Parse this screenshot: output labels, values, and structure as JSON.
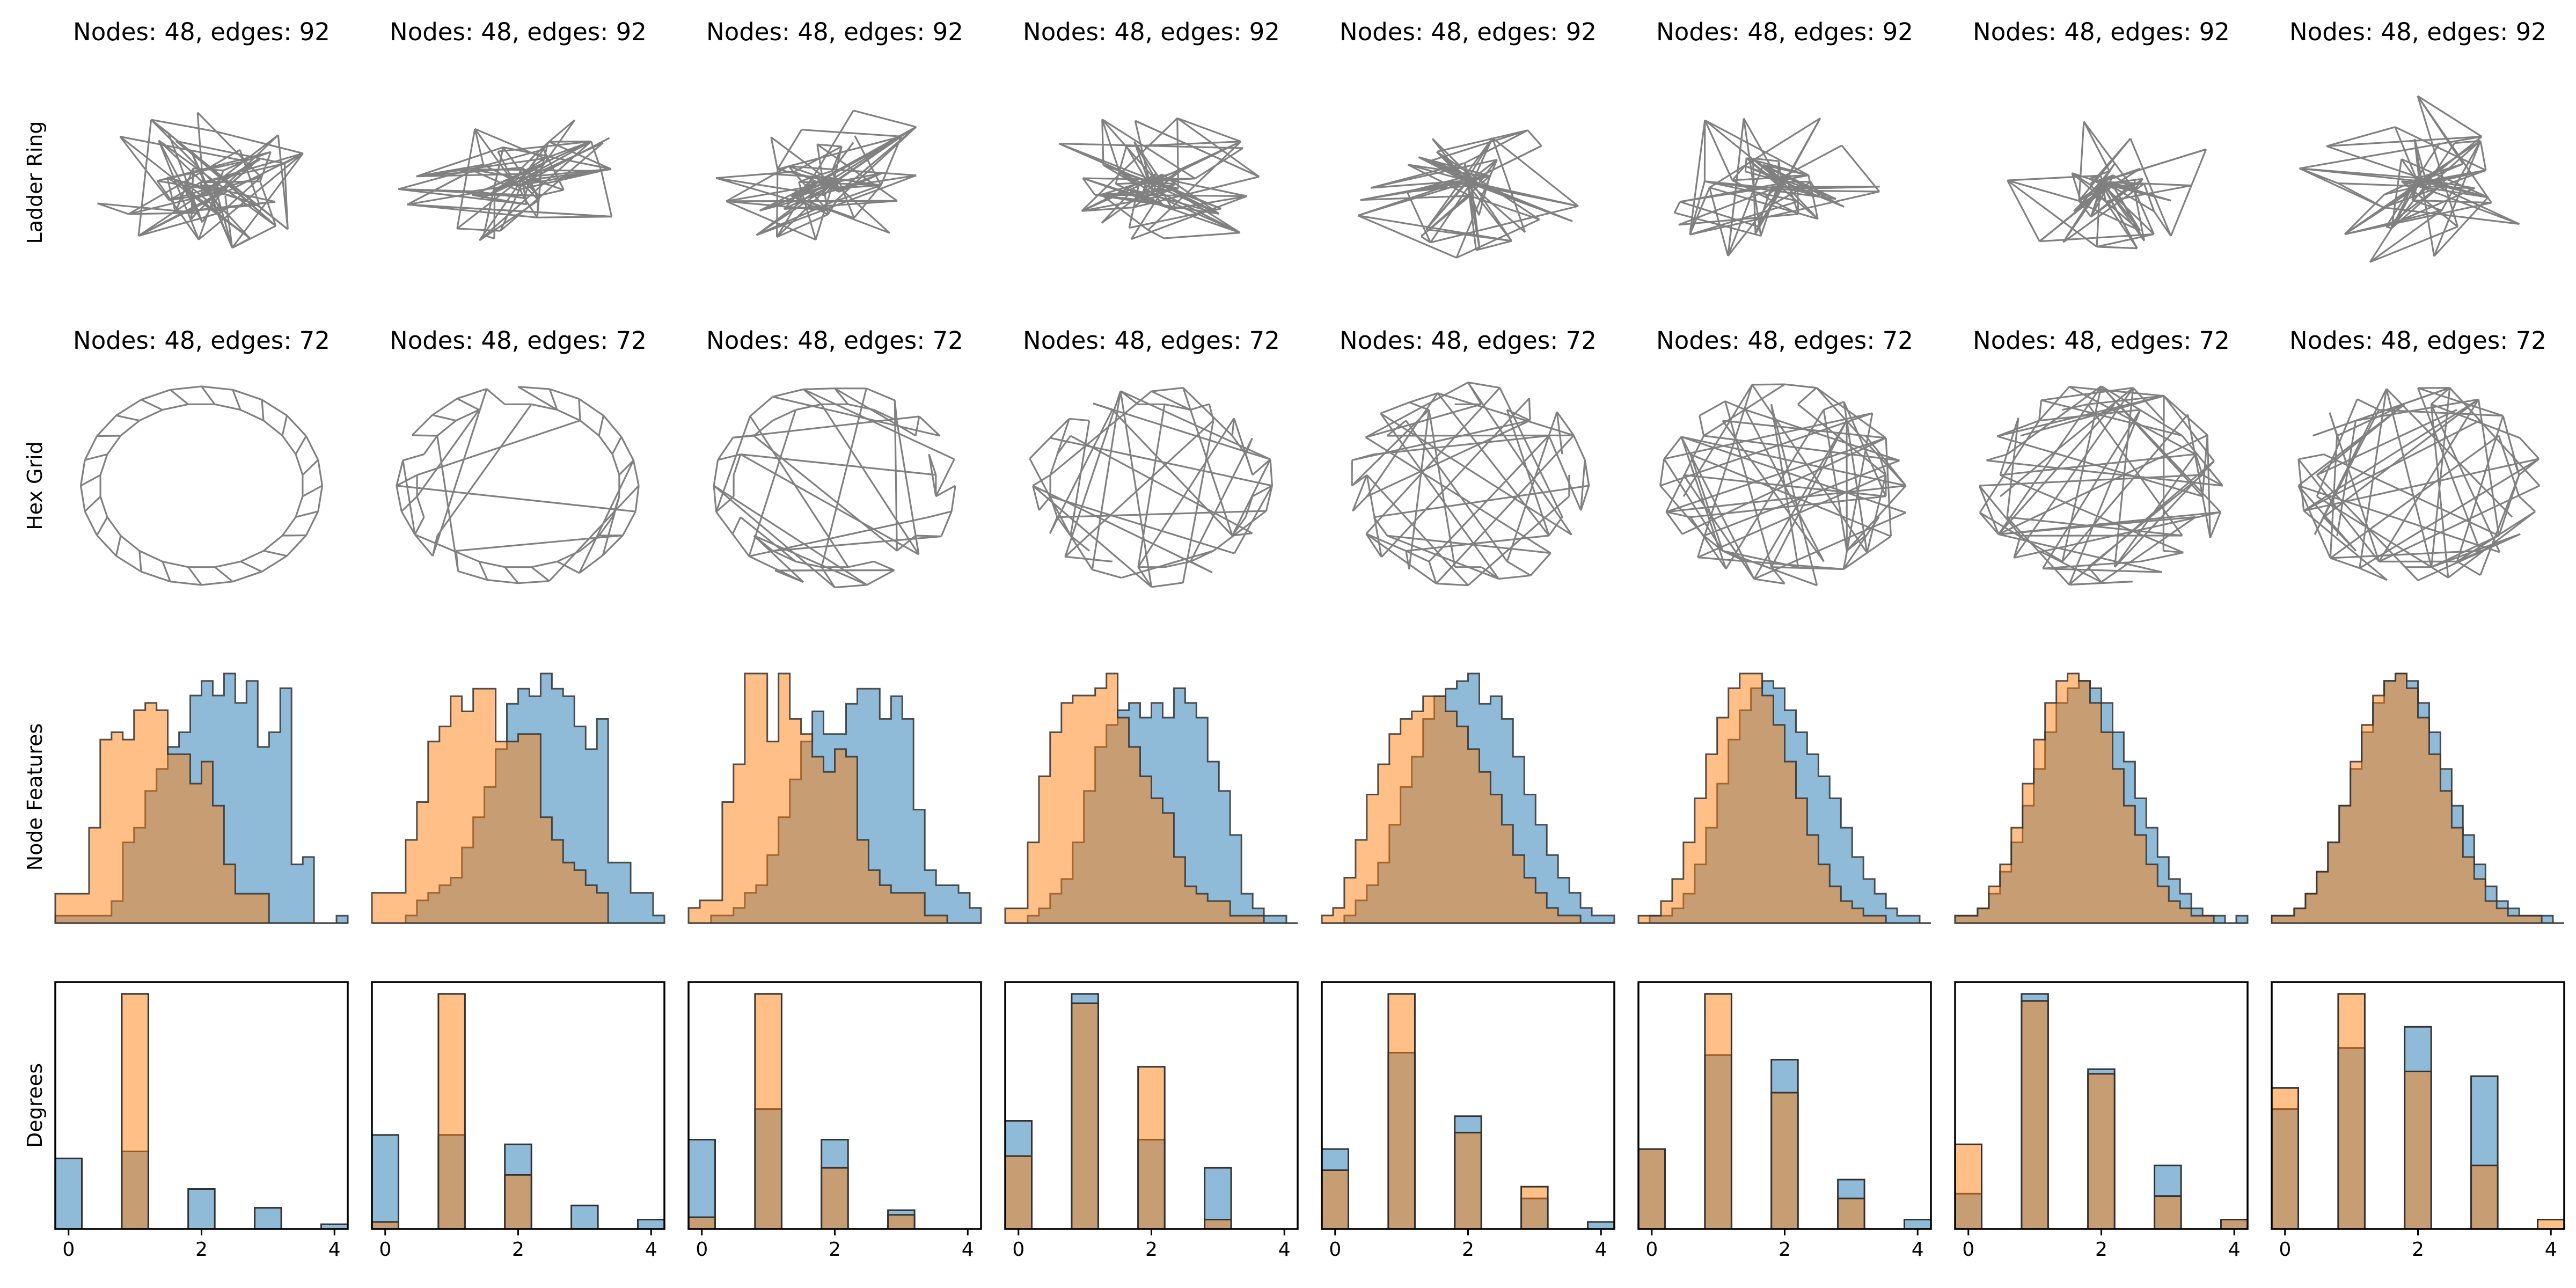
{
  "figure": {
    "row_labels": [
      "Ladder Ring",
      "Hex Grid",
      "Node Features",
      "Degrees"
    ],
    "ladder_titles": [
      "Nodes: 48, edges: 92",
      "Nodes: 48, edges: 92",
      "Nodes: 48, edges: 92",
      "Nodes: 48, edges: 92",
      "Nodes: 48, edges: 92",
      "Nodes: 48, edges: 92",
      "Nodes: 48, edges: 92",
      "Nodes: 48, edges: 92"
    ],
    "hex_titles": [
      "Nodes: 48, edges: 72",
      "Nodes: 48, edges: 72",
      "Nodes: 48, edges: 72",
      "Nodes: 48, edges: 72",
      "Nodes: 48, edges: 72",
      "Nodes: 48, edges: 72",
      "Nodes: 48, edges: 72",
      "Nodes: 48, edges: 72"
    ],
    "colors": {
      "edge": "#808080",
      "blue": "#1f77b4",
      "orange": "#ff7f0e",
      "outline": "#333333"
    }
  },
  "chart_data": [
    {
      "type": "graph",
      "row": "Ladder Ring",
      "panels": 8,
      "nodes": 48,
      "edges": 92
    },
    {
      "type": "graph",
      "row": "Hex Grid",
      "panels": 8,
      "nodes": 48,
      "edges": 72
    },
    {
      "type": "histogram",
      "row": "Node Features",
      "series_colors": [
        "#1f77b4",
        "#ff7f0e"
      ],
      "panels": [
        {
          "blue": [
            1,
            1,
            1,
            1,
            1,
            3,
            11,
            13,
            18,
            21,
            24,
            26,
            31,
            33,
            31,
            34,
            30,
            33,
            24,
            26,
            32,
            8,
            9,
            0,
            0,
            1
          ],
          "orange": [
            4,
            4,
            4,
            13,
            25,
            26,
            25,
            29,
            30,
            29,
            23,
            23,
            19,
            22,
            16,
            8,
            4,
            4,
            4,
            0,
            0,
            0,
            0,
            0,
            0,
            0
          ]
        },
        {
          "blue": [
            0,
            0,
            0,
            1,
            3,
            4,
            5,
            6,
            10,
            14,
            18,
            23,
            29,
            31,
            30,
            33,
            31,
            30,
            26,
            23,
            27,
            8,
            8,
            4,
            4,
            1
          ],
          "orange": [
            4,
            4,
            4,
            11,
            16,
            24,
            26,
            30,
            28,
            31,
            31,
            24,
            24,
            25,
            25,
            14,
            11,
            8,
            7,
            5,
            4,
            0,
            0,
            0,
            0,
            0
          ]
        },
        {
          "blue": [
            0,
            0,
            1,
            1,
            2,
            4,
            5,
            9,
            14,
            19,
            24,
            28,
            25,
            25,
            29,
            31,
            31,
            27,
            30,
            27,
            15,
            7,
            5,
            5,
            4,
            2
          ],
          "orange": [
            2,
            3,
            3,
            16,
            21,
            33,
            33,
            24,
            33,
            27,
            25,
            22,
            20,
            23,
            22,
            11,
            7,
            5,
            4,
            4,
            4,
            1,
            1,
            0,
            0,
            0
          ]
        },
        {
          "blue": [
            0,
            0,
            1,
            2,
            4,
            6,
            11,
            18,
            24,
            27,
            29,
            30,
            28,
            30,
            28,
            32,
            30,
            28,
            22,
            18,
            12,
            4,
            2,
            1,
            1,
            0
          ],
          "orange": [
            2,
            2,
            11,
            20,
            26,
            30,
            31,
            31,
            32,
            34,
            28,
            24,
            20,
            17,
            15,
            9,
            5,
            4,
            3,
            3,
            1,
            1,
            1,
            0,
            0,
            0
          ]
        },
        {
          "blue": [
            0,
            0,
            1,
            3,
            5,
            8,
            13,
            18,
            22,
            27,
            30,
            31,
            32,
            33,
            29,
            30,
            27,
            22,
            17,
            13,
            9,
            6,
            4,
            2,
            1,
            1
          ],
          "orange": [
            1,
            2,
            6,
            11,
            17,
            21,
            25,
            27,
            28,
            30,
            30,
            28,
            26,
            23,
            20,
            17,
            13,
            9,
            6,
            4,
            2,
            1,
            1,
            0,
            0,
            0
          ]
        },
        {
          "blue": [
            0,
            1,
            1,
            2,
            4,
            8,
            13,
            19,
            25,
            29,
            32,
            33,
            32,
            29,
            26,
            23,
            20,
            17,
            13,
            9,
            6,
            4,
            2,
            1,
            1,
            0
          ],
          "orange": [
            1,
            1,
            3,
            6,
            11,
            17,
            23,
            28,
            32,
            34,
            34,
            31,
            27,
            22,
            17,
            12,
            8,
            5,
            3,
            2,
            1,
            1,
            0,
            0,
            0,
            0
          ]
        },
        {
          "blue": [
            1,
            1,
            2,
            4,
            7,
            11,
            16,
            21,
            26,
            30,
            32,
            33,
            32,
            30,
            26,
            22,
            17,
            13,
            9,
            6,
            4,
            2,
            1,
            1,
            0,
            1
          ],
          "orange": [
            1,
            1,
            2,
            5,
            8,
            13,
            19,
            25,
            30,
            33,
            34,
            33,
            30,
            26,
            21,
            16,
            12,
            8,
            5,
            3,
            2,
            1,
            1,
            0,
            0,
            0
          ]
        },
        {
          "blue": [
            1,
            1,
            2,
            4,
            7,
            11,
            16,
            21,
            26,
            30,
            33,
            34,
            33,
            30,
            26,
            21,
            16,
            12,
            8,
            5,
            3,
            2,
            1,
            1,
            1,
            0
          ],
          "orange": [
            1,
            1,
            2,
            4,
            7,
            11,
            16,
            22,
            27,
            31,
            33,
            34,
            32,
            28,
            23,
            18,
            13,
            9,
            6,
            3,
            2,
            1,
            1,
            1,
            0,
            0
          ]
        }
      ]
    },
    {
      "type": "bar",
      "row": "Degrees",
      "x_ticks": [
        0,
        2,
        4
      ],
      "xlim": [
        -0.2,
        4.2
      ],
      "categories": [
        0,
        1,
        2,
        3,
        4
      ],
      "panels": [
        {
          "blue": [
            0.3,
            0.33,
            0.17,
            0.09,
            0.02
          ],
          "orange": [
            0.0,
            1.0,
            0.0,
            0.0,
            0.0
          ]
        },
        {
          "blue": [
            0.4,
            0.4,
            0.36,
            0.1,
            0.04
          ],
          "orange": [
            0.03,
            1.0,
            0.23,
            0.0,
            0.0
          ]
        },
        {
          "blue": [
            0.38,
            0.51,
            0.38,
            0.08,
            0.0
          ],
          "orange": [
            0.05,
            1.0,
            0.26,
            0.06,
            0.0
          ]
        },
        {
          "blue": [
            0.46,
            1.0,
            0.38,
            0.26,
            0.0
          ],
          "orange": [
            0.31,
            0.96,
            0.69,
            0.04,
            0.0
          ]
        },
        {
          "blue": [
            0.34,
            0.75,
            0.48,
            0.13,
            0.03
          ],
          "orange": [
            0.25,
            1.0,
            0.41,
            0.18,
            0.0
          ]
        },
        {
          "blue": [
            0.34,
            0.74,
            0.72,
            0.21,
            0.04
          ],
          "orange": [
            0.34,
            1.0,
            0.58,
            0.13,
            0.0
          ]
        },
        {
          "blue": [
            0.15,
            1.0,
            0.68,
            0.27,
            0.04
          ],
          "orange": [
            0.36,
            0.97,
            0.66,
            0.14,
            0.04
          ]
        },
        {
          "blue": [
            0.51,
            0.77,
            0.86,
            0.65,
            0.0
          ],
          "orange": [
            0.6,
            1.0,
            0.67,
            0.27,
            0.04
          ]
        }
      ]
    }
  ]
}
